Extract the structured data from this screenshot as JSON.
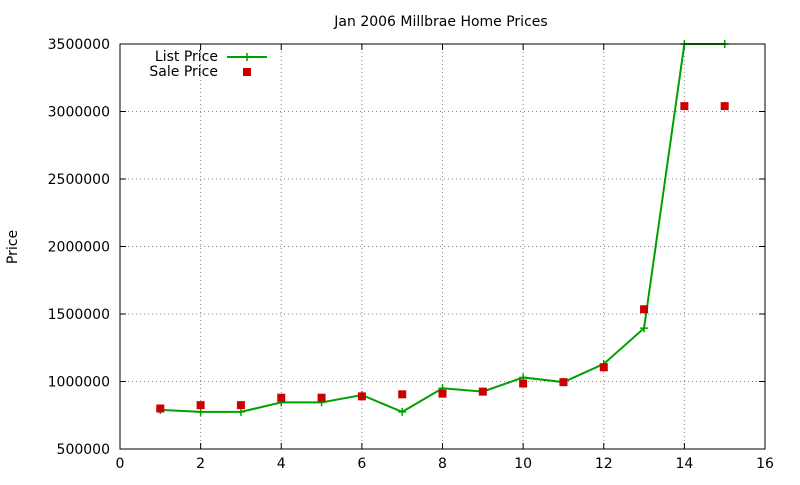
{
  "chart_data": {
    "type": "line",
    "title": "Jan 2006 Millbrae Home Prices",
    "xlabel": "",
    "ylabel": "Price",
    "xlim": [
      0,
      16
    ],
    "ylim": [
      500000,
      3500000
    ],
    "x_ticks": [
      0,
      2,
      4,
      6,
      8,
      10,
      12,
      14,
      16
    ],
    "y_ticks": [
      500000,
      1000000,
      1500000,
      2000000,
      2500000,
      3000000,
      3500000
    ],
    "grid": true,
    "legend_position": "top-left",
    "series": [
      {
        "name": "List Price",
        "style": "line+plus-markers",
        "color": "#00a000",
        "x": [
          1,
          2,
          3,
          4,
          5,
          6,
          7,
          8,
          9,
          10,
          11,
          12,
          13,
          14,
          15
        ],
        "y": [
          790000,
          775000,
          775000,
          845000,
          845000,
          900000,
          775000,
          950000,
          925000,
          1030000,
          995000,
          1130000,
          1395000,
          3500000,
          3500000
        ]
      },
      {
        "name": "Sale Price",
        "style": "square-markers",
        "color": "#cc0000",
        "x": [
          1,
          2,
          3,
          4,
          5,
          6,
          7,
          8,
          9,
          10,
          11,
          12,
          13,
          14,
          15
        ],
        "y": [
          800000,
          825000,
          825000,
          880000,
          880000,
          890000,
          905000,
          910000,
          925000,
          985000,
          995000,
          1105000,
          1535000,
          3040000,
          3040000
        ]
      }
    ]
  }
}
